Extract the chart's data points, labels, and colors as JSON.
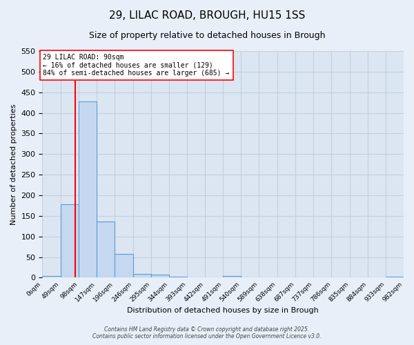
{
  "title": "29, LILAC ROAD, BROUGH, HU15 1SS",
  "subtitle": "Size of property relative to detached houses in Brough",
  "xlabel": "Distribution of detached houses by size in Brough",
  "ylabel": "Number of detached properties",
  "bin_edges": [
    0,
    49,
    98,
    147,
    196,
    246,
    295,
    344,
    393,
    442,
    491,
    540,
    589,
    638,
    687,
    737,
    786,
    835,
    884,
    933,
    982
  ],
  "bin_labels": [
    "0sqm",
    "49sqm",
    "98sqm",
    "147sqm",
    "196sqm",
    "246sqm",
    "295sqm",
    "344sqm",
    "393sqm",
    "442sqm",
    "491sqm",
    "540sqm",
    "589sqm",
    "638sqm",
    "687sqm",
    "737sqm",
    "786sqm",
    "835sqm",
    "884sqm",
    "933sqm",
    "982sqm"
  ],
  "bar_heights": [
    5,
    178,
    428,
    136,
    58,
    9,
    8,
    3,
    0,
    0,
    5,
    0,
    0,
    0,
    0,
    0,
    0,
    0,
    0,
    3
  ],
  "bar_color": "#c5d8f0",
  "bar_edge_color": "#5b9bd5",
  "background_color": "#dce6f2",
  "fig_background_color": "#e8eff8",
  "grid_color": "#c0cfe0",
  "red_line_x": 90,
  "ylim": [
    0,
    550
  ],
  "yticks": [
    0,
    50,
    100,
    150,
    200,
    250,
    300,
    350,
    400,
    450,
    500,
    550
  ],
  "annotation_line1": "29 LILAC ROAD: 90sqm",
  "annotation_line2": "← 16% of detached houses are smaller (129)",
  "annotation_line3": "84% of semi-detached houses are larger (685) →",
  "footer_line1": "Contains HM Land Registry data © Crown copyright and database right 2025.",
  "footer_line2": "Contains public sector information licensed under the Open Government Licence v3.0."
}
